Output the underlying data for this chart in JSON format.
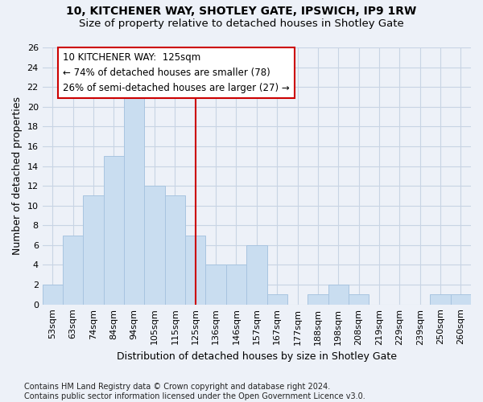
{
  "title": "10, KITCHENER WAY, SHOTLEY GATE, IPSWICH, IP9 1RW",
  "subtitle": "Size of property relative to detached houses in Shotley Gate",
  "xlabel": "Distribution of detached houses by size in Shotley Gate",
  "ylabel": "Number of detached properties",
  "bins": [
    "53sqm",
    "63sqm",
    "74sqm",
    "84sqm",
    "94sqm",
    "105sqm",
    "115sqm",
    "125sqm",
    "136sqm",
    "146sqm",
    "157sqm",
    "167sqm",
    "177sqm",
    "188sqm",
    "198sqm",
    "208sqm",
    "219sqm",
    "229sqm",
    "239sqm",
    "250sqm",
    "260sqm"
  ],
  "counts": [
    2,
    7,
    11,
    15,
    21,
    12,
    11,
    7,
    4,
    4,
    6,
    1,
    0,
    1,
    2,
    1,
    0,
    0,
    0,
    1,
    1
  ],
  "bar_color": "#c9ddf0",
  "bar_edge_color": "#a8c4e0",
  "grid_color": "#c8d4e4",
  "bg_color": "#edf1f8",
  "vline_x_index": 7,
  "vline_color": "#cc0000",
  "annotation_text": "10 KITCHENER WAY:  125sqm\n← 74% of detached houses are smaller (78)\n26% of semi-detached houses are larger (27) →",
  "annotation_box_color": "#ffffff",
  "annotation_box_edge_color": "#cc0000",
  "ylim": [
    0,
    26
  ],
  "yticks": [
    0,
    2,
    4,
    6,
    8,
    10,
    12,
    14,
    16,
    18,
    20,
    22,
    24,
    26
  ],
  "footer": "Contains HM Land Registry data © Crown copyright and database right 2024.\nContains public sector information licensed under the Open Government Licence v3.0.",
  "title_fontsize": 10,
  "subtitle_fontsize": 9.5,
  "label_fontsize": 9,
  "tick_fontsize": 8,
  "footer_fontsize": 7,
  "annotation_fontsize": 8.5
}
